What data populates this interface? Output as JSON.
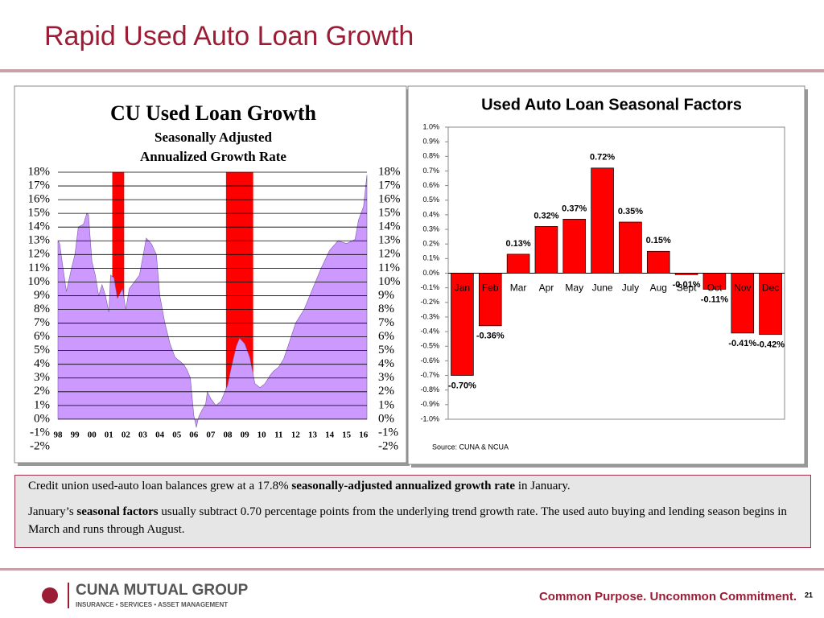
{
  "title": "Rapid Used Auto Loan Growth",
  "chart_data": [
    {
      "type": "area",
      "title": "CU Used Loan Growth",
      "subtitle": [
        "Seasonally Adjusted",
        "Annualized Growth Rate"
      ],
      "color": "#cc99ff",
      "grid": true,
      "shaded_ranges": [
        [
          2001.2,
          2001.9
        ],
        [
          2007.9,
          2009.5
        ]
      ],
      "shade_color": "#ff0000",
      "xlim": [
        1998,
        2016.2
      ],
      "ylim": [
        -2,
        18
      ],
      "xticks": [
        {
          "value": 1998,
          "label": "98"
        },
        {
          "value": 1999,
          "label": "99"
        },
        {
          "value": 2000,
          "label": "00"
        },
        {
          "value": 2001,
          "label": "01"
        },
        {
          "value": 2002,
          "label": "02"
        },
        {
          "value": 2003,
          "label": "03"
        },
        {
          "value": 2004,
          "label": "04"
        },
        {
          "value": 2005,
          "label": "05"
        },
        {
          "value": 2006,
          "label": "06"
        },
        {
          "value": 2007,
          "label": "07"
        },
        {
          "value": 2008,
          "label": "08"
        },
        {
          "value": 2009,
          "label": "09"
        },
        {
          "value": 2010,
          "label": "10"
        },
        {
          "value": 2011,
          "label": "11"
        },
        {
          "value": 2012,
          "label": "12"
        },
        {
          "value": 2013,
          "label": "13"
        },
        {
          "value": 2014,
          "label": "14"
        },
        {
          "value": 2015,
          "label": "15"
        },
        {
          "value": 2016,
          "label": "16"
        }
      ],
      "yticks": [
        {
          "value": 18,
          "label": "18%"
        },
        {
          "value": 17,
          "label": "17%"
        },
        {
          "value": 16,
          "label": "16%"
        },
        {
          "value": 15,
          "label": "15%"
        },
        {
          "value": 14,
          "label": "14%"
        },
        {
          "value": 13,
          "label": "13%"
        },
        {
          "value": 12,
          "label": "12%"
        },
        {
          "value": 11,
          "label": "11%"
        },
        {
          "value": 10,
          "label": "10%"
        },
        {
          "value": 9,
          "label": "9%"
        },
        {
          "value": 8,
          "label": "8%"
        },
        {
          "value": 7,
          "label": "7%"
        },
        {
          "value": 6,
          "label": "6%"
        },
        {
          "value": 5,
          "label": "5%"
        },
        {
          "value": 4,
          "label": "4%"
        },
        {
          "value": 3,
          "label": "3%"
        },
        {
          "value": 2,
          "label": "2%"
        },
        {
          "value": 1,
          "label": "1%"
        },
        {
          "value": 0,
          "label": "0%"
        },
        {
          "value": -1,
          "label": "-1%"
        },
        {
          "value": -2,
          "label": "-2%"
        }
      ],
      "x": [
        1998.0,
        1998.1,
        1998.3,
        1998.5,
        1998.8,
        1999.0,
        1999.2,
        1999.5,
        1999.7,
        1999.8,
        2000.0,
        2000.2,
        2000.4,
        2000.6,
        2000.8,
        2001.0,
        2001.1,
        2001.3,
        2001.5,
        2001.8,
        2002.0,
        2002.2,
        2002.5,
        2002.8,
        2003.0,
        2003.2,
        2003.5,
        2003.8,
        2004.0,
        2004.3,
        2004.6,
        2004.9,
        2005.2,
        2005.4,
        2005.6,
        2005.8,
        2006.0,
        2006.15,
        2006.3,
        2006.5,
        2006.7,
        2006.8,
        2007.0,
        2007.3,
        2007.6,
        2008.0,
        2008.2,
        2008.5,
        2008.7,
        2009.0,
        2009.3,
        2009.6,
        2009.9,
        2010.2,
        2010.5,
        2010.7,
        2011.0,
        2011.3,
        2011.6,
        2012.0,
        2012.5,
        2013.0,
        2013.5,
        2014.0,
        2014.5,
        2015.0,
        2015.5,
        2015.7,
        2016.0,
        2016.2
      ],
      "values": [
        13,
        12.8,
        11,
        9.3,
        11,
        12,
        14,
        14.2,
        15,
        14.9,
        11.5,
        10.5,
        9,
        9.8,
        9,
        7.8,
        10.5,
        10.3,
        8.8,
        9.5,
        8,
        9.5,
        10,
        10.5,
        11.8,
        13.2,
        12.8,
        12,
        9,
        7,
        5.5,
        4.5,
        4.2,
        4,
        3.6,
        3,
        0.3,
        -0.6,
        0.2,
        0.7,
        1.1,
        2,
        1.5,
        1,
        1.3,
        2.5,
        3.7,
        5.3,
        5.9,
        5.5,
        4.5,
        2.6,
        2.3,
        2.6,
        3.2,
        3.5,
        3.8,
        4.4,
        5.5,
        7,
        8,
        9.5,
        11,
        12.3,
        13,
        12.8,
        13.1,
        14.5,
        15.5,
        17.8
      ]
    },
    {
      "type": "bar",
      "title": "Used Auto Loan Seasonal Factors",
      "source": "Source: CUNA & NCUA",
      "color": "#ff0000",
      "categories": [
        "Jan",
        "Feb",
        "Mar",
        "Apr",
        "May",
        "June",
        "July",
        "Aug",
        "Sept",
        "Oct",
        "Nov",
        "Dec"
      ],
      "values": [
        -0.7,
        -0.36,
        0.13,
        0.32,
        0.37,
        0.72,
        0.35,
        0.15,
        -0.01,
        -0.11,
        -0.41,
        -0.42
      ],
      "value_labels": [
        "-0.70%",
        "-0.36%",
        "0.13%",
        "0.32%",
        "0.37%",
        "0.72%",
        "0.35%",
        "0.15%",
        "-0.01%",
        "-0.11%",
        "-0.41%",
        "-0.42%"
      ],
      "ylim": [
        -1,
        1
      ],
      "yticks": [
        {
          "value": 1.0,
          "label": "1.0%"
        },
        {
          "value": 0.9,
          "label": "0.9%"
        },
        {
          "value": 0.8,
          "label": "0.8%"
        },
        {
          "value": 0.7,
          "label": "0.7%"
        },
        {
          "value": 0.6,
          "label": "0.6%"
        },
        {
          "value": 0.5,
          "label": "0.5%"
        },
        {
          "value": 0.4,
          "label": "0.4%"
        },
        {
          "value": 0.3,
          "label": "0.3%"
        },
        {
          "value": 0.2,
          "label": "0.2%"
        },
        {
          "value": 0.1,
          "label": "0.1%"
        },
        {
          "value": 0,
          "label": "0.0%"
        },
        {
          "value": -0.1,
          "label": "-0.1%"
        },
        {
          "value": -0.2,
          "label": "-0.2%"
        },
        {
          "value": -0.3,
          "label": "-0.3%"
        },
        {
          "value": -0.4,
          "label": "-0.4%"
        },
        {
          "value": -0.5,
          "label": "-0.5%"
        },
        {
          "value": -0.6,
          "label": "-0.6%"
        },
        {
          "value": -0.7,
          "label": "-0.7%"
        },
        {
          "value": -0.8,
          "label": "-0.8%"
        },
        {
          "value": -0.9,
          "label": "-0.9%"
        },
        {
          "value": -1.0,
          "label": "-1.0%"
        }
      ]
    }
  ],
  "text_box": {
    "paragraphs": [
      [
        {
          "text": "Credit union used-auto loan balances grew at a 17.8% ",
          "bold": false
        },
        {
          "text": "seasonally-adjusted annualized growth rate",
          "bold": true
        },
        {
          "text": " in January.",
          "bold": false
        }
      ],
      [
        {
          "text": "January’s ",
          "bold": false
        },
        {
          "text": "seasonal factors",
          "bold": true
        },
        {
          "text": " usually subtract 0.70 percentage points from the underlying trend growth rate.  The used auto buying and lending season begins in March and runs through August.",
          "bold": false
        }
      ]
    ]
  },
  "footer": {
    "company": "CUNA MUTUAL GROUP",
    "tagline": "INSURANCE • SERVICES • ASSET MANAGEMENT",
    "slogan": "Common Purpose. Uncommon Commitment.",
    "page": "21"
  }
}
